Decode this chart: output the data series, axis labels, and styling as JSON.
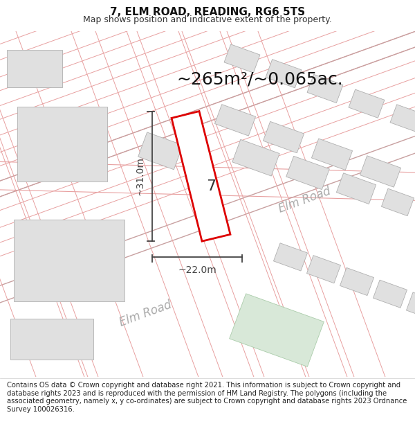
{
  "title": "7, ELM ROAD, READING, RG6 5TS",
  "subtitle": "Map shows position and indicative extent of the property.",
  "footer": "Contains OS data © Crown copyright and database right 2021. This information is subject to Crown copyright and database rights 2023 and is reproduced with the permission of HM Land Registry. The polygons (including the associated geometry, namely x, y co-ordinates) are subject to Crown copyright and database rights 2023 Ordnance Survey 100026316.",
  "area_label": "~265m²/~0.065ac.",
  "width_label": "~22.0m",
  "height_label": "~31.0m",
  "plot_label": "7",
  "map_bg": "#f9f9f9",
  "line_color": "#e8a0a0",
  "building_fill": "#e0e0e0",
  "building_edge": "#b0b0b0",
  "plot_fill": "#ffffff",
  "plot_edge": "#dd0000",
  "plot_edge_width": 2.0,
  "dim_color": "#444444",
  "road_label_color": "#aaaaaa",
  "green_fill": "#d8e8d8",
  "title_fontsize": 11,
  "subtitle_fontsize": 9,
  "footer_fontsize": 7.2,
  "area_fontsize": 18,
  "dim_fontsize": 10,
  "road_fontsize": 12,
  "plot_num_fontsize": 16
}
